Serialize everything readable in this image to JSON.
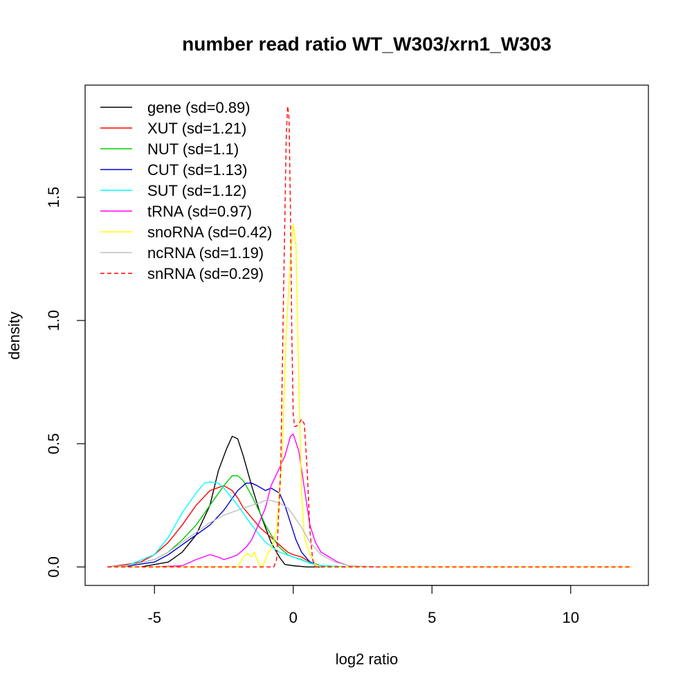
{
  "chart_data": {
    "type": "line",
    "title": "number read ratio WT_W303/xrn1_W303",
    "xlabel": "log2 ratio",
    "ylabel": "density",
    "xlim": [
      -7.5,
      12.8
    ],
    "ylim": [
      -0.075,
      1.955
    ],
    "x_ticks": [
      -5,
      0,
      5,
      10
    ],
    "x_tick_labels": [
      "-5",
      "0",
      "5",
      "10"
    ],
    "y_ticks": [
      0.0,
      0.5,
      1.0,
      1.5
    ],
    "y_tick_labels": [
      "0.0",
      "0.5",
      "1.0",
      "1.5"
    ],
    "grid": false,
    "legend_position": "top-left",
    "series": [
      {
        "name": "gene (sd=0.89)",
        "color": "#000000",
        "dash": false,
        "x": [
          -6.7,
          -5.5,
          -4.5,
          -4.0,
          -3.5,
          -3.0,
          -2.7,
          -2.4,
          -2.2,
          -2.0,
          -1.8,
          -1.5,
          -1.2,
          -1.0,
          -0.8,
          -0.5,
          -0.3,
          0.0,
          0.5,
          2.0,
          3.0
        ],
        "y": [
          0,
          0,
          0.02,
          0.06,
          0.13,
          0.25,
          0.39,
          0.48,
          0.53,
          0.52,
          0.45,
          0.33,
          0.22,
          0.16,
          0.1,
          0.04,
          0.01,
          0.005,
          0,
          0,
          0
        ]
      },
      {
        "name": "XUT (sd=1.21)",
        "color": "#ff0000",
        "dash": false,
        "x": [
          -6.7,
          -6.0,
          -5.5,
          -5.0,
          -4.5,
          -4.0,
          -3.5,
          -3.0,
          -2.5,
          -2.2,
          -2.0,
          -1.8,
          -1.5,
          -1.2,
          -1.0,
          -0.8,
          -0.5,
          -0.2,
          0.0,
          0.3,
          0.6,
          1.0,
          2.0
        ],
        "y": [
          0,
          0.01,
          0.02,
          0.05,
          0.1,
          0.17,
          0.25,
          0.31,
          0.33,
          0.31,
          0.28,
          0.24,
          0.2,
          0.16,
          0.14,
          0.12,
          0.09,
          0.06,
          0.05,
          0.04,
          0.02,
          0.005,
          0
        ]
      },
      {
        "name": "NUT (sd=1.1)",
        "color": "#00cd00",
        "dash": false,
        "x": [
          -6.7,
          -6.0,
          -5.0,
          -4.5,
          -4.0,
          -3.5,
          -3.0,
          -2.5,
          -2.2,
          -2.0,
          -1.8,
          -1.5,
          -1.2,
          -1.0,
          -0.8,
          -0.5,
          -0.2,
          0.0,
          0.3,
          0.6,
          1.0,
          2.0
        ],
        "y": [
          0,
          0.005,
          0.03,
          0.06,
          0.11,
          0.17,
          0.25,
          0.33,
          0.37,
          0.37,
          0.35,
          0.29,
          0.22,
          0.17,
          0.13,
          0.08,
          0.05,
          0.04,
          0.03,
          0.015,
          0.005,
          0
        ]
      },
      {
        "name": "CUT (sd=1.13)",
        "color": "#0000cd",
        "dash": false,
        "x": [
          -6.7,
          -6.0,
          -5.0,
          -4.5,
          -4.0,
          -3.5,
          -3.0,
          -2.5,
          -2.0,
          -1.7,
          -1.5,
          -1.3,
          -1.0,
          -0.8,
          -0.5,
          -0.3,
          -0.1,
          0.1,
          0.3,
          0.6,
          1.0,
          2.0
        ],
        "y": [
          0,
          0.003,
          0.02,
          0.05,
          0.09,
          0.13,
          0.17,
          0.23,
          0.31,
          0.34,
          0.34,
          0.33,
          0.31,
          0.32,
          0.3,
          0.25,
          0.18,
          0.11,
          0.06,
          0.02,
          0.005,
          0
        ]
      },
      {
        "name": "SUT (sd=1.12)",
        "color": "#00ffff",
        "dash": false,
        "x": [
          -6.7,
          -6.0,
          -5.0,
          -4.5,
          -4.0,
          -3.5,
          -3.2,
          -3.0,
          -2.7,
          -2.5,
          -2.0,
          -1.5,
          -1.0,
          -0.5,
          0.0,
          0.5,
          1.0,
          2.0
        ],
        "y": [
          0,
          0.005,
          0.05,
          0.12,
          0.22,
          0.3,
          0.34,
          0.345,
          0.34,
          0.32,
          0.25,
          0.17,
          0.1,
          0.06,
          0.04,
          0.02,
          0.005,
          0
        ]
      },
      {
        "name": "tRNA (sd=0.97)",
        "color": "#ff00ff",
        "dash": false,
        "x": [
          -6.7,
          -5.0,
          -4.0,
          -3.5,
          -3.0,
          -2.7,
          -2.5,
          -2.2,
          -2.0,
          -1.7,
          -1.5,
          -1.3,
          -1.0,
          -0.8,
          -0.5,
          -0.3,
          -0.1,
          0.0,
          0.2,
          0.4,
          0.6,
          0.8,
          1.0,
          1.3,
          1.6,
          2.0,
          3.0
        ],
        "y": [
          0,
          0,
          0.005,
          0.03,
          0.05,
          0.04,
          0.03,
          0.04,
          0.05,
          0.08,
          0.11,
          0.16,
          0.24,
          0.33,
          0.4,
          0.45,
          0.53,
          0.54,
          0.47,
          0.32,
          0.17,
          0.1,
          0.06,
          0.04,
          0.02,
          0.005,
          0
        ]
      },
      {
        "name": "snoRNA (sd=0.42)",
        "color": "#ffff00",
        "dash": false,
        "x": [
          -6.7,
          -2.0,
          -1.8,
          -1.65,
          -1.5,
          -1.4,
          -1.3,
          -1.2,
          -1.1,
          -1.0,
          -0.9,
          -0.8,
          -0.6,
          -0.4,
          -0.25,
          -0.1,
          0.0,
          0.1,
          0.2,
          0.3,
          0.4,
          0.6,
          0.8,
          1.0,
          12.2
        ],
        "y": [
          0,
          0,
          0.04,
          0.055,
          0.04,
          0.06,
          0.03,
          0.005,
          0.002,
          0.03,
          0.06,
          0.07,
          0.15,
          0.45,
          0.95,
          1.25,
          1.39,
          1.3,
          0.75,
          0.3,
          0.12,
          0.05,
          0.01,
          0,
          0
        ]
      },
      {
        "name": "ncRNA (sd=1.19)",
        "color": "#bebebe",
        "dash": false,
        "x": [
          -6.7,
          -6.0,
          -5.0,
          -4.5,
          -4.0,
          -3.5,
          -3.0,
          -2.5,
          -2.0,
          -1.5,
          -1.2,
          -1.0,
          -0.8,
          -0.5,
          -0.2,
          0.0,
          0.3,
          0.6,
          1.0,
          1.5,
          2.0,
          3.0
        ],
        "y": [
          0,
          0.005,
          0.03,
          0.06,
          0.1,
          0.14,
          0.18,
          0.21,
          0.23,
          0.25,
          0.26,
          0.27,
          0.27,
          0.26,
          0.24,
          0.21,
          0.16,
          0.1,
          0.05,
          0.02,
          0.005,
          0
        ]
      },
      {
        "name": "snRNA (sd=0.29)",
        "color": "#ff0000",
        "dash": true,
        "x": [
          -6.7,
          -0.7,
          -0.6,
          -0.45,
          -0.35,
          -0.25,
          -0.2,
          -0.15,
          -0.1,
          -0.05,
          0.0,
          0.05,
          0.1,
          0.2,
          0.3,
          0.4,
          0.5,
          0.6,
          0.7,
          0.8,
          1.0,
          12.2
        ],
        "y": [
          0,
          0,
          0.03,
          0.4,
          1.1,
          1.75,
          1.87,
          1.82,
          1.45,
          0.95,
          0.62,
          0.57,
          0.57,
          0.58,
          0.6,
          0.58,
          0.4,
          0.15,
          0.03,
          0,
          0,
          0
        ]
      }
    ]
  }
}
